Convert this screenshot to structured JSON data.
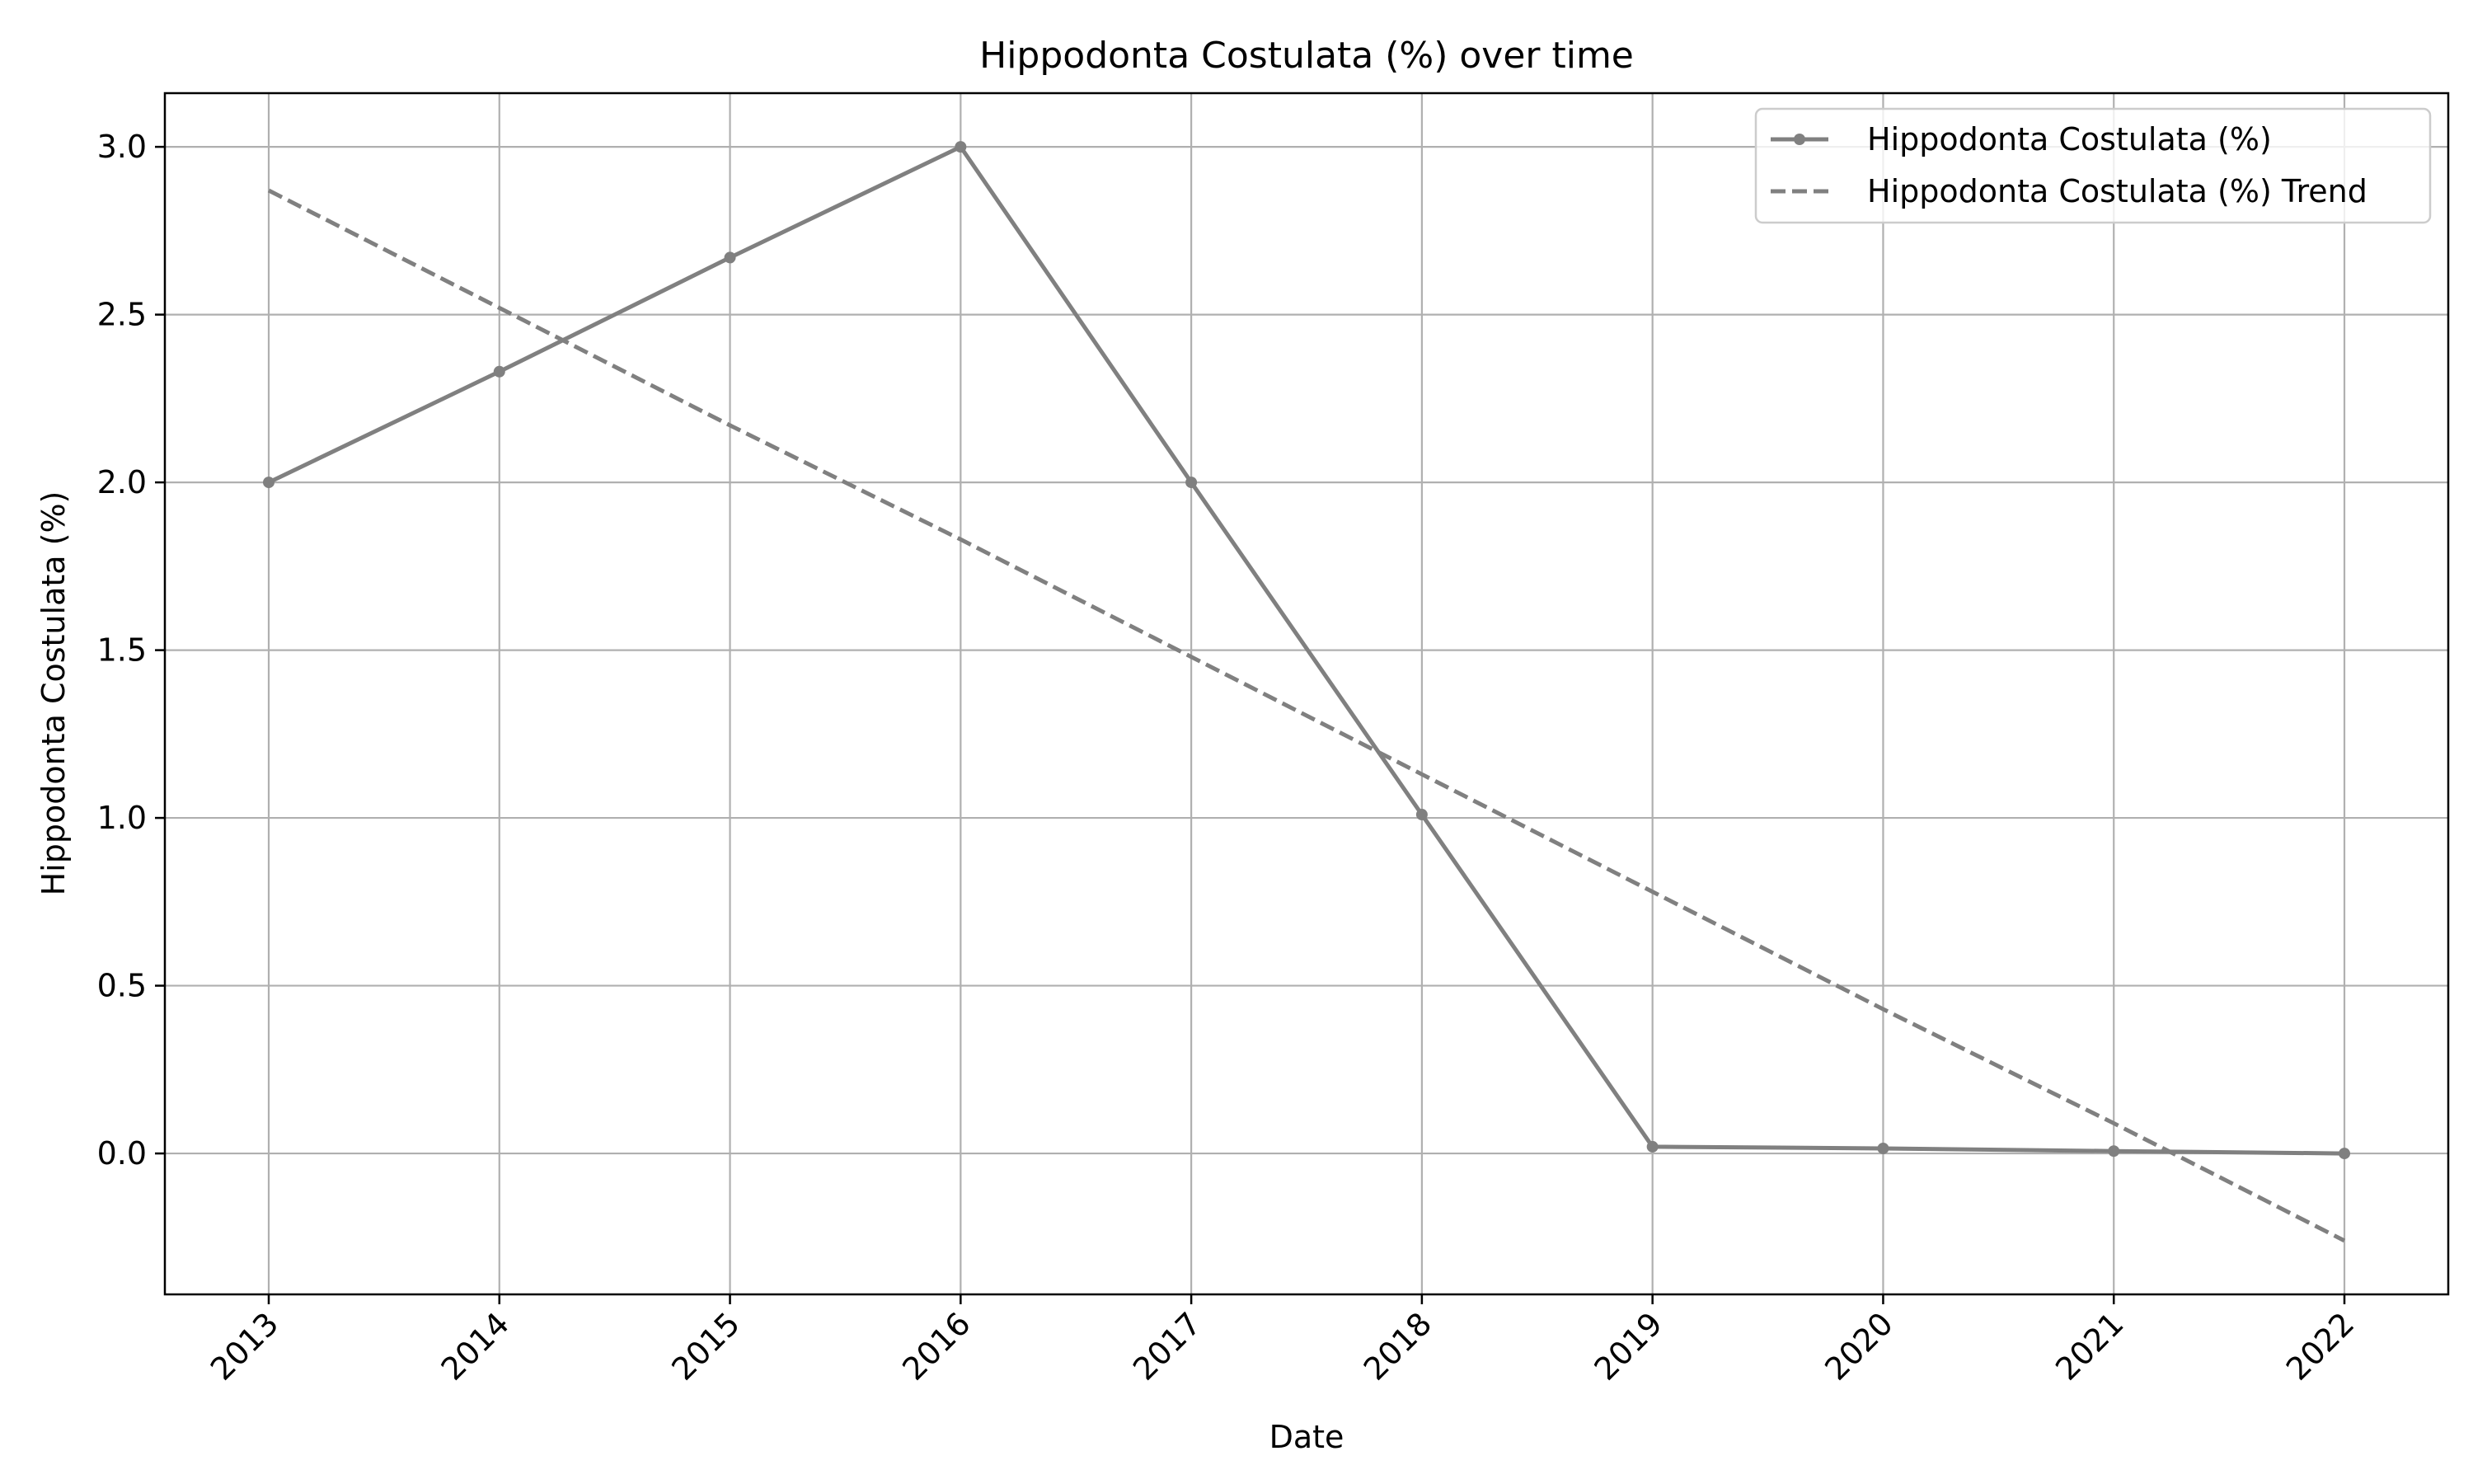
{
  "chart_data": {
    "type": "line",
    "title": "Hippodonta Costulata (%) over time",
    "xlabel": "Date",
    "ylabel": "Hippodonta Costulata (%)",
    "x": [
      "2013",
      "2014",
      "2015",
      "2016",
      "2017",
      "2018",
      "2019",
      "2020",
      "2021",
      "2022"
    ],
    "series": [
      {
        "name": "Hippodonta Costulata (%)",
        "style": "solid",
        "marker": "circle",
        "color": "#808080",
        "values": [
          2.0,
          2.33,
          2.67,
          3.0,
          2.0,
          1.01,
          0.02,
          0.015,
          0.007,
          0.0
        ]
      },
      {
        "name": "Hippodonta Costulata (%) Trend",
        "style": "dashed",
        "color": "#808080",
        "values": [
          2.87,
          2.52,
          2.17,
          1.83,
          1.48,
          1.13,
          0.78,
          0.43,
          0.09,
          -0.26
        ]
      }
    ],
    "ylim": [
      -0.42,
      3.16
    ],
    "yticks": [
      "0.0",
      "0.5",
      "1.0",
      "1.5",
      "2.0",
      "2.5",
      "3.0"
    ],
    "grid": true,
    "legend_position": "top-right"
  }
}
